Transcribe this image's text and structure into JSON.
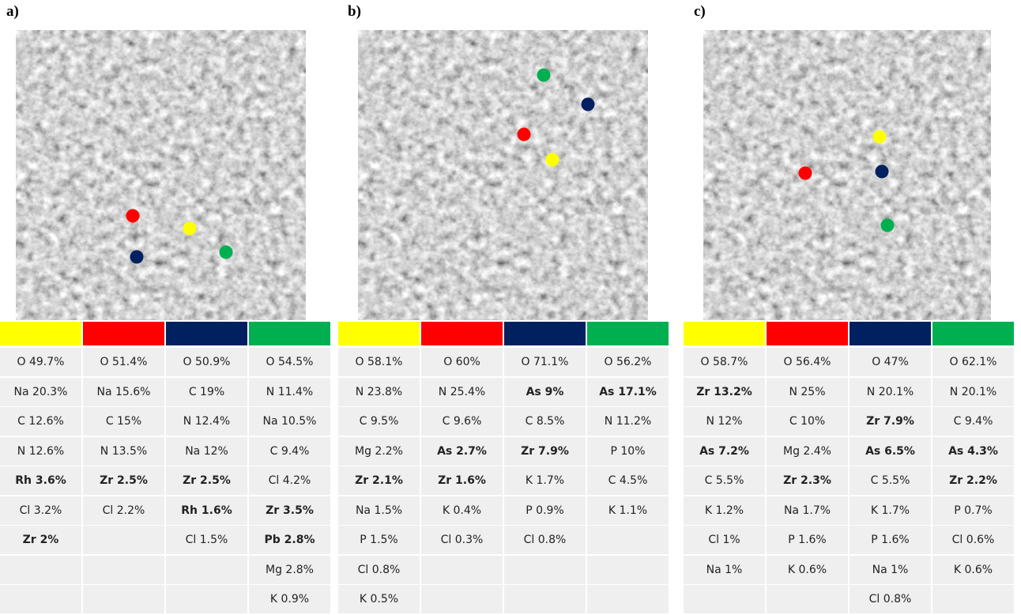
{
  "panels": [
    {
      "label": "a)",
      "columns": [
        {
          "color": "#ffff00",
          "cells": [
            "O 49.7%",
            "Na 20.3%",
            "C 12.6%",
            "N 12.6%",
            {
              "text": "Rh 3.6%",
              "bold": true
            },
            "Cl 3.2%",
            {
              "text": "Zr 2%",
              "bold": true
            }
          ]
        },
        {
          "color": "#ff0000",
          "cells": [
            "O 51.4%",
            "Na 15.6%",
            "C 15%",
            "N 13.5%",
            {
              "text": "Zr 2.5%",
              "bold": true
            },
            "Cl 2.2%"
          ]
        },
        {
          "color": "#002060",
          "cells": [
            "O  50.9%",
            "C 19%",
            "N 12.4%",
            "Na 12%",
            {
              "text": "Zr 2.5%",
              "bold": true
            },
            {
              "text": "Rh 1.6%",
              "bold": true
            },
            "Cl 1.5%"
          ]
        },
        {
          "color": "#00b050",
          "cells": [
            "O 54.5%",
            "N 11.4%",
            "Na 10.5%",
            "C 9.4%",
            "Cl 4.2%",
            {
              "text": "Zr 3.5%",
              "bold": true
            },
            {
              "text": "Pb 2.8%",
              "bold": true
            },
            "Mg 2.8%",
            "K 0.9%"
          ]
        }
      ]
    },
    {
      "label": "b)",
      "columns": [
        {
          "color": "#ffff00",
          "cells": [
            "O 58.1%",
            "N 23.8%",
            "C 9.5%",
            "Mg 2.2%",
            {
              "text": "Zr 2.1%",
              "bold": true
            },
            "Na 1.5%",
            "P 1.5%",
            "Cl 0.8%",
            "K 0.5%"
          ]
        },
        {
          "color": "#ff0000",
          "cells": [
            "O 60%",
            "N 25.4%",
            "C 9.6%",
            {
              "text": "As 2.7%",
              "bold": true
            },
            {
              "text": "Zr 1.6%",
              "bold": true
            },
            "K 0.4%",
            "Cl 0.3%"
          ]
        },
        {
          "color": "#002060",
          "cells": [
            "O  71.1%",
            {
              "text": "As 9%",
              "bold": true
            },
            "C 8.5%",
            {
              "text": "Zr 7.9%",
              "bold": true
            },
            "K 1.7%",
            "P 0.9%",
            "Cl 0.8%"
          ]
        },
        {
          "color": "#00b050",
          "cells": [
            "O 56.2%",
            {
              "text": "As 17.1%",
              "bold": true
            },
            "N 11.2%",
            "P 10%",
            "C 4.5%",
            "K 1.1%"
          ]
        }
      ]
    },
    {
      "label": "c)",
      "columns": [
        {
          "color": "#ffff00",
          "cells": [
            "O 58.7%",
            {
              "text": "Zr 13.2%",
              "bold": true
            },
            "N 12%",
            {
              "text": "As 7.2%",
              "bold": true
            },
            "C 5.5%",
            "K 1.2%",
            "Cl 1%",
            "Na 1%"
          ]
        },
        {
          "color": "#ff0000",
          "cells": [
            "O 56.4%",
            "N 25%",
            "C 10%",
            "Mg 2.4%",
            {
              "text": "Zr 2.3%",
              "bold": true
            },
            "Na 1.7%",
            "P 1.6%",
            "K 0.6%"
          ]
        },
        {
          "color": "#002060",
          "cells": [
            "O  47%",
            "N 20.1%",
            {
              "text": "Zr 7.9%",
              "bold": true
            },
            {
              "text": "As 6.5%",
              "bold": true
            },
            "C 5.5%",
            "K 1.7%",
            "P 1.6%",
            "Na 1%",
            "Cl 0.8%"
          ]
        },
        {
          "color": "#00b050",
          "cells": [
            "O 62.1%",
            "N 20.1%",
            "C 9.4%",
            {
              "text": "As 4.3%",
              "bold": true
            },
            {
              "text": "Zr 2.2%",
              "bold": true
            },
            "P 0.7%",
            "Cl 0.6%",
            "K 0.6%"
          ]
        }
      ]
    }
  ]
}
